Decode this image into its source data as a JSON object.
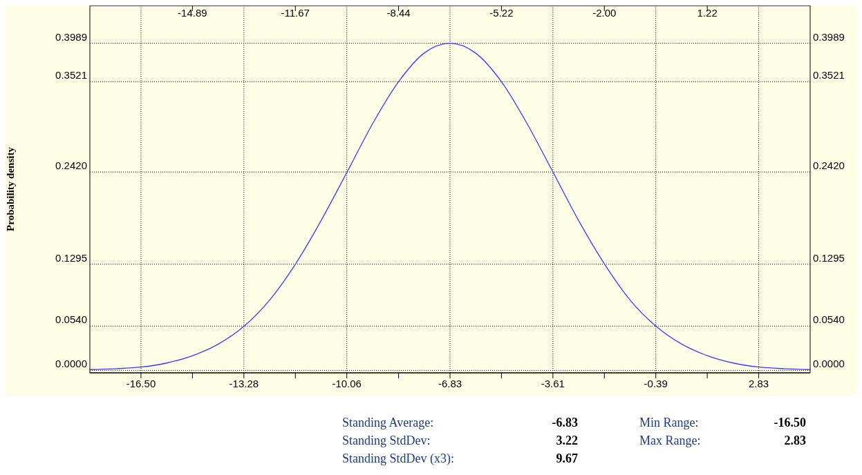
{
  "chart_data": {
    "type": "line",
    "ylabel": "Probability density",
    "xlim": [
      -18.1,
      4.44
    ],
    "xticks": [
      {
        "value": -16.5,
        "label": "-16.50"
      },
      {
        "value": -14.89,
        "label": null
      },
      {
        "value": -13.28,
        "label": "-13.28"
      },
      {
        "value": -11.67,
        "label": null
      },
      {
        "value": -10.06,
        "label": "-10.06"
      },
      {
        "value": -8.44,
        "label": null
      },
      {
        "value": -6.83,
        "label": "-6.83"
      },
      {
        "value": -5.22,
        "label": null
      },
      {
        "value": -3.61,
        "label": "-3.61"
      },
      {
        "value": -2.0,
        "label": null
      },
      {
        "value": -0.39,
        "label": "-0.39"
      },
      {
        "value": 1.22,
        "label": null
      },
      {
        "value": 2.83,
        "label": "2.83"
      }
    ],
    "x2lim": [
      -18.1,
      4.44
    ],
    "x2ticks": [
      {
        "value": -14.89,
        "label": "-14.89"
      },
      {
        "value": -11.67,
        "label": "-11.67"
      },
      {
        "value": -8.44,
        "label": "-8.44"
      },
      {
        "value": -5.22,
        "label": "-5.22"
      },
      {
        "value": -2.0,
        "label": "-2.00"
      },
      {
        "value": 1.22,
        "label": "1.22"
      }
    ],
    "ylim": [
      -0.003,
      0.445
    ],
    "yticks": [
      {
        "value": 0,
        "label": "0.0000"
      },
      {
        "value": 0.054,
        "label": "0.0540"
      },
      {
        "value": 0.1295,
        "label": "0.1295"
      },
      {
        "value": 0.242,
        "label": "0.2420"
      },
      {
        "value": 0.3521,
        "label": "0.3521"
      },
      {
        "value": 0.3989,
        "label": "0.3989"
      }
    ],
    "y2lim": [
      -0.003,
      0.445
    ],
    "y2ticks": [
      {
        "value": 0,
        "label": "0.0000"
      },
      {
        "value": 0.054,
        "label": "0.0540"
      },
      {
        "value": 0.1295,
        "label": "0.1295"
      },
      {
        "value": 0.242,
        "label": "0.2420"
      },
      {
        "value": 0.3521,
        "label": "0.3521"
      },
      {
        "value": 0.3989,
        "label": "0.3989"
      }
    ],
    "grid": true,
    "series": [
      {
        "color": "#3a3aff",
        "x": [
          -18.1,
          -17.3,
          -16.49,
          -15.69,
          -14.88,
          -14.08,
          -13.27,
          -12.47,
          -11.66,
          -10.86,
          -10.05,
          -9.25,
          -8.44,
          -7.64,
          -6.83,
          -6.03,
          -5.22,
          -4.42,
          -3.61,
          -2.81,
          -2.0,
          -1.2,
          -0.39,
          0.42,
          1.22,
          2.03,
          2.83,
          3.64,
          4.44
        ],
        "values": [
          0.001,
          0.002,
          0.004,
          0.009,
          0.018,
          0.032,
          0.054,
          0.086,
          0.13,
          0.183,
          0.242,
          0.301,
          0.352,
          0.387,
          0.399,
          0.387,
          0.352,
          0.301,
          0.242,
          0.183,
          0.13,
          0.086,
          0.054,
          0.032,
          0.018,
          0.009,
          0.004,
          0.002,
          0.001
        ]
      }
    ],
    "annotations": [
      "Standing Average:",
      "-6.83",
      "Standing StdDev:",
      "3.22",
      "Standing StdDev (x3):",
      "9.67",
      "Min Range:",
      "-16.50",
      "Max Range:",
      "2.83"
    ]
  }
}
